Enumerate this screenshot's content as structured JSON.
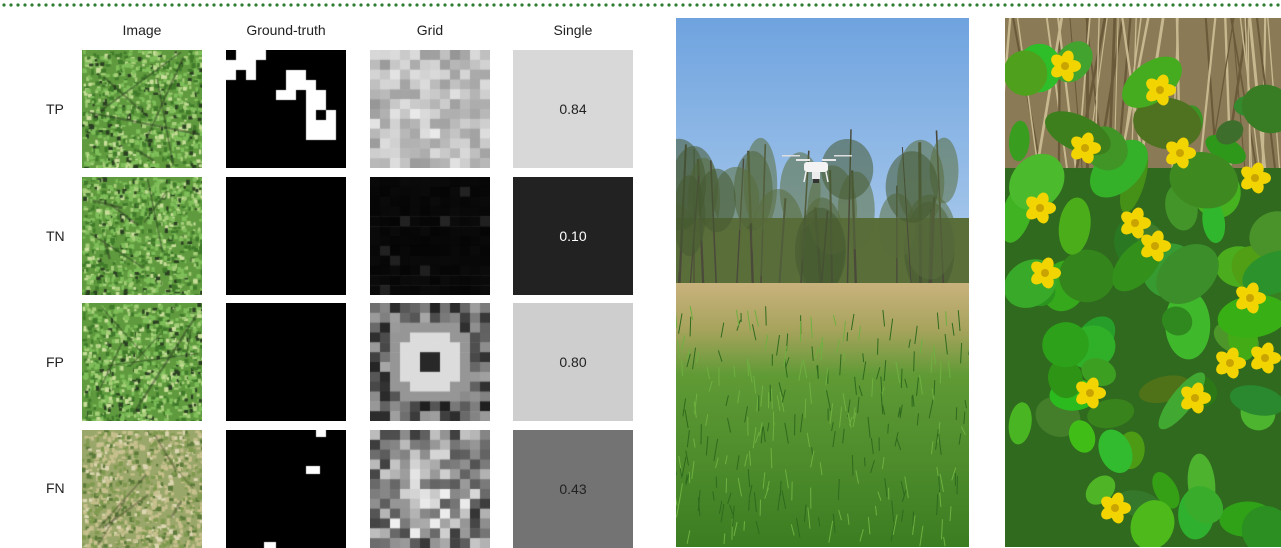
{
  "columns": [
    "Image",
    "Ground-truth",
    "Grid",
    "Single"
  ],
  "rows": [
    {
      "label": "TP",
      "single": "0.84",
      "single_level": 0.84
    },
    {
      "label": "TN",
      "single": "0.10",
      "single_level": 0.1
    },
    {
      "label": "FP",
      "single": "0.80",
      "single_level": 0.8
    },
    {
      "label": "FN",
      "single": "0.43",
      "single_level": 0.43
    }
  ],
  "colors": {
    "border_dots": "#2e7d32",
    "sky": "#8fb8e6",
    "grass": "#4f8f2f",
    "flower": "#f2d400",
    "leaf": "#3f9a2c"
  },
  "photos": [
    "drone-over-meadow",
    "yellow-marsh-marigold-flowers"
  ]
}
